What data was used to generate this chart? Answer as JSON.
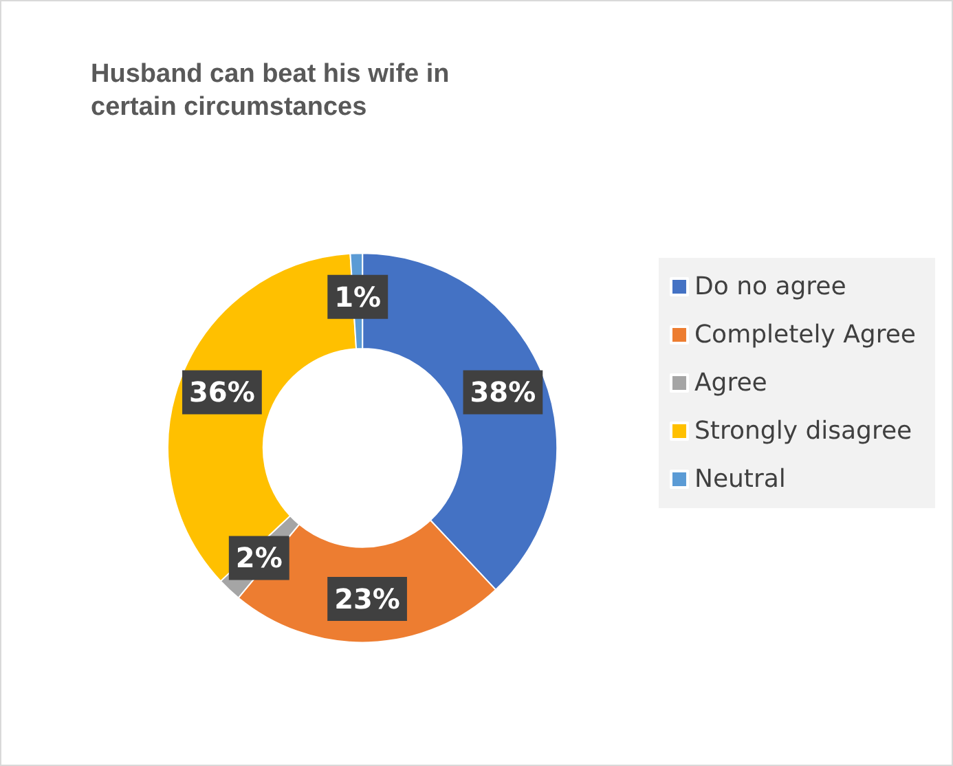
{
  "chart_data": {
    "type": "donut",
    "title": "Husband can beat his wife in certain circumstances",
    "categories": [
      "Do no agree",
      "Completely Agree",
      "Agree",
      "Strongly disagree",
      "Neutral"
    ],
    "values": [
      38,
      23,
      2,
      36,
      1
    ],
    "colors": [
      "#4472c4",
      "#ed7d31",
      "#a5a5a5",
      "#ffc000",
      "#5b9bd5"
    ],
    "value_labels": [
      "38%",
      "23%",
      "2%",
      "36%",
      "1%"
    ],
    "legend": "right"
  }
}
